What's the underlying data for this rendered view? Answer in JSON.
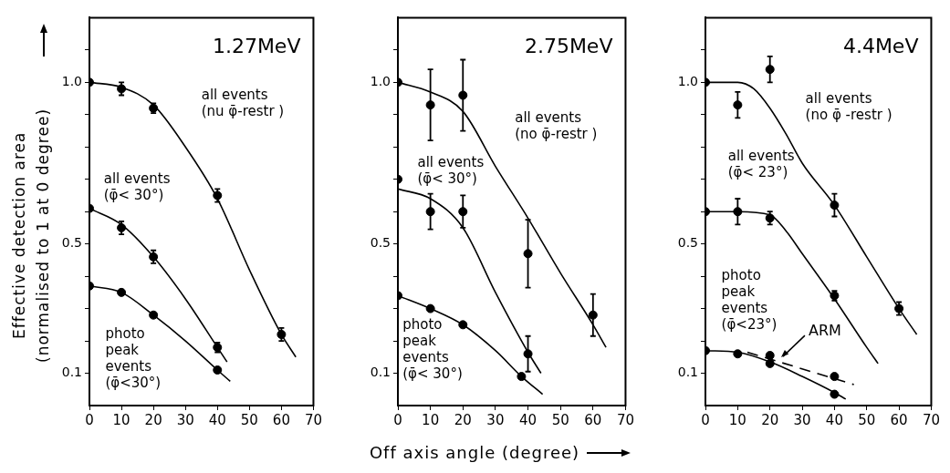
{
  "chart_data": [
    {
      "type": "scatter",
      "title": "1.27MeV",
      "ylabel": "Effective detection area\n(normalised to 1 at 0 degree)",
      "xlim": [
        0,
        70
      ],
      "xticks": [
        0,
        10,
        20,
        30,
        40,
        50,
        60,
        70
      ],
      "ylim": [
        0,
        1.2
      ],
      "yticks": [
        {
          "value": 0.1,
          "label": "0.1"
        },
        {
          "value": 0.2,
          "label": null
        },
        {
          "value": 0.3,
          "label": null
        },
        {
          "value": 0.4,
          "label": null
        },
        {
          "value": 0.5,
          "label": "0.5"
        },
        {
          "value": 0.6,
          "label": null
        },
        {
          "value": 0.7,
          "label": null
        },
        {
          "value": 0.8,
          "label": null
        },
        {
          "value": 0.9,
          "label": null
        },
        {
          "value": 1,
          "label": "1.0"
        },
        {
          "value": 1.1,
          "label": null
        }
      ],
      "grid": false,
      "legend": false,
      "marker": "circle",
      "annotations": [
        "all events\n(nu φ̄-restr )",
        "all events\n(φ̄< 30°)",
        "photo\npeak\nevents\n(φ̄<30°)"
      ],
      "series": [
        {
          "type": "line",
          "marker": "none",
          "color": "#000000",
          "x": [
            0,
            10,
            20,
            30,
            40,
            50,
            60,
            64.5
          ],
          "values": [
            1.0,
            0.985,
            0.93,
            0.8,
            0.64,
            0.42,
            0.22,
            0.15
          ]
        },
        {
          "type": "scatter",
          "color": "#000000",
          "x": [
            0,
            10,
            20,
            40,
            60
          ],
          "values": [
            1.0,
            0.98,
            0.92,
            0.65,
            0.22
          ],
          "errors": [
            null,
            0.02,
            0.015,
            0.02,
            0.02
          ]
        },
        {
          "type": "line",
          "marker": "none",
          "color": "#000000",
          "x": [
            0,
            10,
            20,
            30,
            40,
            43
          ],
          "values": [
            0.61,
            0.56,
            0.46,
            0.33,
            0.18,
            0.135
          ]
        },
        {
          "type": "scatter",
          "color": "#000000",
          "x": [
            0,
            10,
            20,
            40
          ],
          "values": [
            0.61,
            0.55,
            0.46,
            0.18
          ],
          "errors": [
            null,
            0.02,
            0.02,
            0.015
          ]
        },
        {
          "type": "line",
          "marker": "none",
          "color": "#000000",
          "x": [
            0,
            10,
            20,
            30,
            40,
            44
          ],
          "values": [
            0.37,
            0.35,
            0.28,
            0.2,
            0.11,
            0.075
          ]
        },
        {
          "type": "scatter",
          "color": "#000000",
          "x": [
            0,
            10,
            20,
            40
          ],
          "values": [
            0.37,
            0.35,
            0.28,
            0.11
          ]
        }
      ]
    },
    {
      "type": "scatter",
      "title": "2.75MeV",
      "xlabel": "Off axis angle (degree)",
      "xlim": [
        0,
        70
      ],
      "xticks": [
        0,
        10,
        20,
        30,
        40,
        50,
        60,
        70
      ],
      "ylim": [
        0,
        1.2
      ],
      "yticks": [
        {
          "value": 0.1,
          "label": "0.1"
        },
        {
          "value": 0.2,
          "label": null
        },
        {
          "value": 0.3,
          "label": null
        },
        {
          "value": 0.4,
          "label": null
        },
        {
          "value": 0.5,
          "label": "0.5"
        },
        {
          "value": 0.6,
          "label": null
        },
        {
          "value": 0.7,
          "label": null
        },
        {
          "value": 0.8,
          "label": null
        },
        {
          "value": 0.9,
          "label": null
        },
        {
          "value": 1,
          "label": "1.0"
        },
        {
          "value": 1.1,
          "label": null
        }
      ],
      "grid": false,
      "legend": false,
      "marker": "circle",
      "annotations": [
        "all events\n(no φ̄-restr )",
        "all events\n(φ̄< 30°)",
        "photo\npeak\nevents\n(φ̄< 30°)"
      ],
      "series": [
        {
          "type": "line",
          "marker": "none",
          "color": "#000000",
          "x": [
            0,
            10,
            20,
            30,
            40,
            50,
            60,
            64
          ],
          "values": [
            1.0,
            0.97,
            0.91,
            0.74,
            0.58,
            0.41,
            0.25,
            0.18
          ]
        },
        {
          "type": "scatter",
          "color": "#000000",
          "x": [
            0,
            10,
            20,
            40,
            60
          ],
          "values": [
            1.0,
            0.93,
            0.96,
            0.47,
            0.28
          ],
          "errors": [
            null,
            0.11,
            0.11,
            0.105,
            0.065
          ]
        },
        {
          "type": "line",
          "marker": "none",
          "color": "#000000",
          "x": [
            0,
            10,
            20,
            30,
            40,
            44
          ],
          "values": [
            0.67,
            0.64,
            0.55,
            0.35,
            0.165,
            0.1
          ]
        },
        {
          "type": "scatter",
          "color": "#000000",
          "x": [
            0,
            10,
            20,
            40
          ],
          "values": [
            0.7,
            0.6,
            0.6,
            0.16
          ],
          "errors": [
            null,
            0.055,
            0.05,
            0.055
          ]
        },
        {
          "type": "line",
          "marker": "none",
          "color": "#000000",
          "x": [
            0,
            10,
            20,
            30,
            38,
            44.5
          ],
          "values": [
            0.34,
            0.3,
            0.25,
            0.17,
            0.09,
            0.035
          ]
        },
        {
          "type": "scatter",
          "color": "#000000",
          "x": [
            0,
            10,
            20,
            38
          ],
          "values": [
            0.34,
            0.3,
            0.25,
            0.09
          ]
        }
      ]
    },
    {
      "type": "scatter",
      "title": "4.4MeV",
      "xlim": [
        0,
        70
      ],
      "xticks": [
        0,
        10,
        20,
        30,
        40,
        50,
        60,
        70
      ],
      "ylim": [
        0,
        1.2
      ],
      "yticks": [
        {
          "value": 0.1,
          "label": "0.1"
        },
        {
          "value": 0.2,
          "label": null
        },
        {
          "value": 0.3,
          "label": null
        },
        {
          "value": 0.4,
          "label": null
        },
        {
          "value": 0.5,
          "label": "0.5"
        },
        {
          "value": 0.6,
          "label": null
        },
        {
          "value": 0.7,
          "label": null
        },
        {
          "value": 0.8,
          "label": null
        },
        {
          "value": 0.9,
          "label": null
        },
        {
          "value": 1,
          "label": "1.0"
        },
        {
          "value": 1.1,
          "label": null
        }
      ],
      "grid": false,
      "legend": false,
      "marker": "circle",
      "annotations": [
        "all events\n(no φ̄ -restr )",
        "all events\n(φ̄< 23°)",
        "photo\npeak\nevents\n(φ̄<23°)"
      ],
      "series": [
        {
          "type": "line",
          "marker": "none",
          "color": "#000000",
          "x": [
            0,
            10,
            15,
            20,
            25,
            30,
            40,
            50,
            60,
            65.5
          ],
          "values": [
            1.0,
            1.0,
            0.98,
            0.92,
            0.84,
            0.75,
            0.62,
            0.46,
            0.3,
            0.22
          ]
        },
        {
          "type": "scatter",
          "color": "#000000",
          "x": [
            0,
            10,
            20,
            40,
            60
          ],
          "values": [
            1.0,
            0.93,
            1.04,
            0.62,
            0.3
          ],
          "errors": [
            null,
            0.04,
            0.04,
            0.035,
            0.02
          ]
        },
        {
          "type": "line",
          "marker": "none",
          "color": "#000000",
          "x": [
            0,
            10,
            20,
            25,
            30,
            40,
            50,
            53.5
          ],
          "values": [
            0.6,
            0.6,
            0.59,
            0.54,
            0.47,
            0.33,
            0.18,
            0.13
          ]
        },
        {
          "type": "scatter",
          "color": "#000000",
          "x": [
            0,
            10,
            20,
            40
          ],
          "values": [
            0.6,
            0.6,
            0.58,
            0.34
          ],
          "errors": [
            null,
            0.04,
            0.02,
            0.015
          ]
        },
        {
          "type": "line",
          "marker": "none",
          "color": "#000000",
          "x": [
            0,
            10,
            20,
            30,
            40,
            43.5
          ],
          "values": [
            0.17,
            0.165,
            0.135,
            0.09,
            0.04,
            0.02
          ]
        },
        {
          "type": "scatter",
          "color": "#000000",
          "x": [
            0,
            10,
            20,
            40
          ],
          "values": [
            0.17,
            0.16,
            0.13,
            0.035
          ]
        },
        {
          "type": "line",
          "name": "ARM",
          "marker": "none",
          "line_style": "dashed",
          "color": "#000000",
          "x": [
            13,
            46
          ],
          "values": [
            0.165,
            0.065
          ]
        },
        {
          "type": "scatter",
          "color": "#000000",
          "x": [
            20,
            40
          ],
          "values": [
            0.155,
            0.09
          ]
        }
      ]
    }
  ]
}
